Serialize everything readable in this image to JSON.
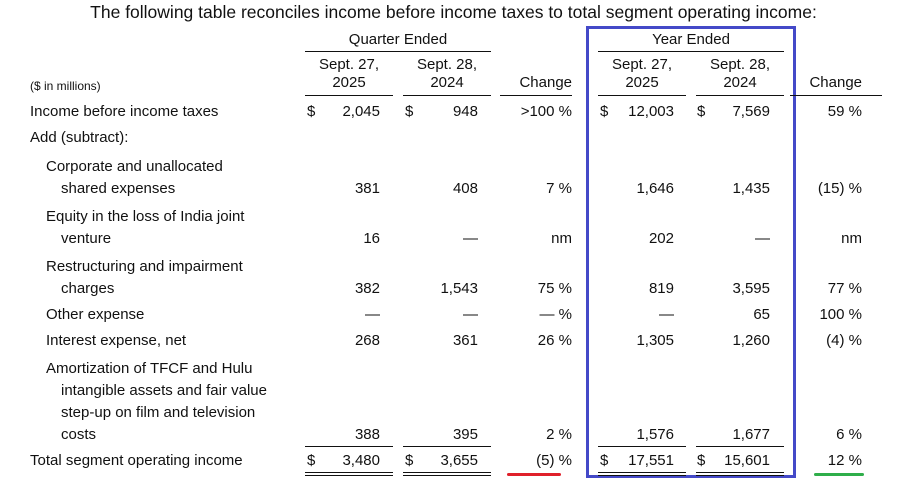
{
  "title": "The following table reconciles income before income taxes to total segment operating income:",
  "units": "($ in millions)",
  "header": {
    "quarter_group": "Quarter Ended",
    "year_group": "Year Ended",
    "col_q1": [
      "Sept. 27,",
      "2025"
    ],
    "col_q2": [
      "Sept. 28,",
      "2024"
    ],
    "col_y1": [
      "Sept. 27,",
      "2025"
    ],
    "col_y2": [
      "Sept. 28,",
      "2024"
    ],
    "change": "Change"
  },
  "rows": [
    {
      "label": [
        "Income before income taxes"
      ],
      "q1": "2,045",
      "q2": "948",
      "qchg": ">100 %",
      "y1": "12,003",
      "y2": "7,569",
      "ychg": "59 %"
    },
    {
      "label": [
        "Add (subtract):"
      ]
    },
    {
      "label": [
        "Corporate and unallocated",
        "shared expenses"
      ],
      "q1": "381",
      "q2": "408",
      "qchg": "7 %",
      "y1": "1,646",
      "y2": "1,435",
      "ychg": "(15) %"
    },
    {
      "label": [
        "Equity in the loss of India joint",
        "venture"
      ],
      "q1": "16",
      "q2": "—",
      "qchg": "nm",
      "y1": "202",
      "y2": "—",
      "ychg": "nm"
    },
    {
      "label": [
        "Restructuring and impairment",
        "charges"
      ],
      "q1": "382",
      "q2": "1,543",
      "qchg": "75 %",
      "y1": "819",
      "y2": "3,595",
      "ychg": "77 %"
    },
    {
      "label": [
        "Other expense"
      ],
      "q1": "—",
      "q2": "—",
      "qchg": "— %",
      "y1": "—",
      "y2": "65",
      "ychg": "100 %"
    },
    {
      "label": [
        "Interest expense, net"
      ],
      "q1": "268",
      "q2": "361",
      "qchg": "26 %",
      "y1": "1,305",
      "y2": "1,260",
      "ychg": "(4) %"
    },
    {
      "label": [
        "Amortization of TFCF and Hulu",
        "intangible assets and fair value",
        "step-up on film and television",
        "costs"
      ],
      "q1": "388",
      "q2": "395",
      "qchg": "2 %",
      "y1": "1,576",
      "y2": "1,677",
      "ychg": "6 %"
    },
    {
      "label": [
        "Total segment operating income"
      ],
      "q1": "3,480",
      "q2": "3,655",
      "qchg": "(5) %",
      "y1": "17,551",
      "y2": "15,601",
      "ychg": "12 %"
    }
  ],
  "currency_symbol": "$",
  "colors": {
    "highlight_box": "#4449c8",
    "negative_underline": "#e0202a",
    "positive_underline": "#2fae4a"
  }
}
